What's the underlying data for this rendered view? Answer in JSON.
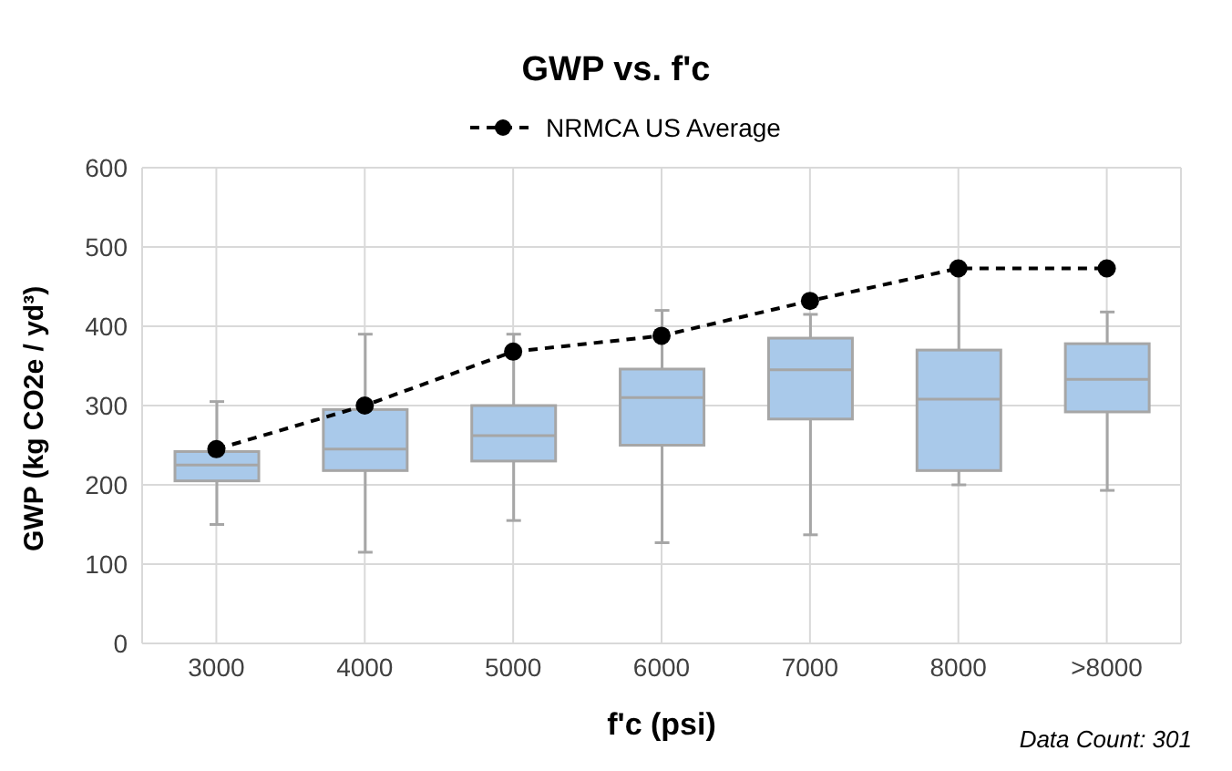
{
  "chart_data": {
    "type": "box",
    "title": "GWP vs. f'c",
    "xlabel": "f'c (psi)",
    "ylabel": "GWP (kg CO2e / yd³)",
    "annotations": [
      "Data Count: 301"
    ],
    "categories": [
      "3000",
      "4000",
      "5000",
      "6000",
      "7000",
      "8000",
      ">8000"
    ],
    "series": [
      {
        "color": "#a9c9ea",
        "boxes": [
          {
            "low": 150,
            "q1": 205,
            "median": 225,
            "q3": 242,
            "high": 305
          },
          {
            "low": 115,
            "q1": 218,
            "median": 245,
            "q3": 295,
            "high": 390
          },
          {
            "low": 155,
            "q1": 230,
            "median": 262,
            "q3": 300,
            "high": 390
          },
          {
            "low": 127,
            "q1": 250,
            "median": 310,
            "q3": 346,
            "high": 420
          },
          {
            "low": 137,
            "q1": 283,
            "median": 345,
            "q3": 385,
            "high": 415
          },
          {
            "low": 200,
            "q1": 218,
            "median": 308,
            "q3": 370,
            "high": 470
          },
          {
            "low": 193,
            "q1": 292,
            "median": 333,
            "q3": 378,
            "high": 418
          }
        ]
      },
      {
        "type": "line",
        "name": "NRMCA US Average",
        "color": "#000000",
        "values": [
          245,
          300,
          368,
          388,
          432,
          473,
          473
        ],
        "marker": "circle",
        "line_style": "dashed"
      }
    ],
    "ylim": [
      0,
      600
    ],
    "yticks": [
      0,
      100,
      200,
      300,
      400,
      500,
      600
    ],
    "grid": true,
    "legend": "top"
  }
}
